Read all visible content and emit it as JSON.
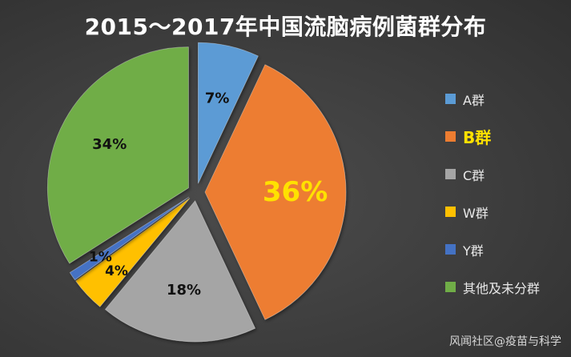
{
  "chart_data": {
    "type": "pie",
    "title": "2015～2017年中国流脑病例菌群分布",
    "slices": [
      {
        "name": "A群",
        "value": 7,
        "label": "7%",
        "color": "#5b9bd5"
      },
      {
        "name": "B群",
        "value": 36,
        "label": "36%",
        "color": "#ed7d31"
      },
      {
        "name": "C群",
        "value": 18,
        "label": "18%",
        "color": "#a5a5a5"
      },
      {
        "name": "W群",
        "value": 4,
        "label": "4%",
        "color": "#ffc000"
      },
      {
        "name": "Y群",
        "value": 1,
        "label": "1%",
        "color": "#4472c4"
      },
      {
        "name": "其他及未分群",
        "value": 34,
        "label": "34%",
        "color": "#70ad47"
      }
    ],
    "highlight": "B群",
    "highlight_color": "#ffe100",
    "exploded": true,
    "legend_position": "right"
  },
  "watermark": "风闻社区@疫苗与科学"
}
